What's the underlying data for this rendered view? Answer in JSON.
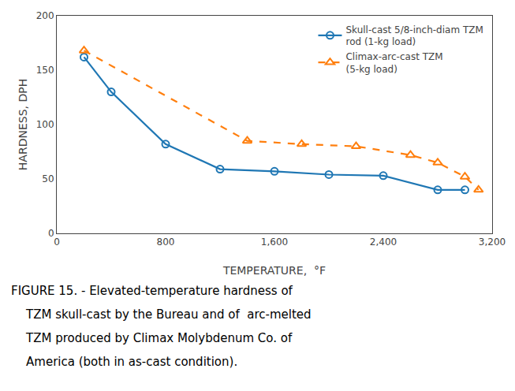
{
  "chart_data": {
    "type": "line",
    "xlabel": "TEMPERATURE,  °F",
    "ylabel": "HARDNESS, DPH",
    "series": [
      {
        "name": "Skull-cast 5/8-inch-diam TZM\nrod (1-kg load)",
        "x": [
          200,
          400,
          800,
          1200,
          1600,
          2000,
          2400,
          2800,
          3000
        ],
        "values": [
          162,
          130,
          82,
          59,
          57,
          54,
          53,
          40,
          40
        ],
        "marker": "circle",
        "line_style": "solid"
      },
      {
        "name": "Climax-arc-cast TZM\n(5-kg load)",
        "x": [
          200,
          1400,
          1800,
          2200,
          2600,
          2800,
          3000,
          3100
        ],
        "values": [
          168,
          85,
          82,
          80,
          72,
          65,
          52,
          40
        ],
        "marker": "triangle",
        "line_style": "dashed"
      }
    ],
    "xlim": [
      0,
      3200
    ],
    "xticks": [
      0,
      800,
      {
        "value": 1600,
        "label": "1,600"
      },
      {
        "value": 2400,
        "label": "2,400"
      },
      {
        "value": 3200,
        "label": "3,200"
      }
    ],
    "ylim": [
      0,
      200
    ],
    "yticks": [
      0,
      50,
      100,
      150,
      200
    ],
    "grid": false,
    "legend": "upper right",
    "annotations": [
      "FIGURE 15. - Elevated-temperature hardness of",
      "    TZM skull-cast by the Bureau and of  arc-melted",
      "    TZM produced by Climax Molybdenum Co. of",
      "    America (both in as-cast condition)."
    ]
  }
}
